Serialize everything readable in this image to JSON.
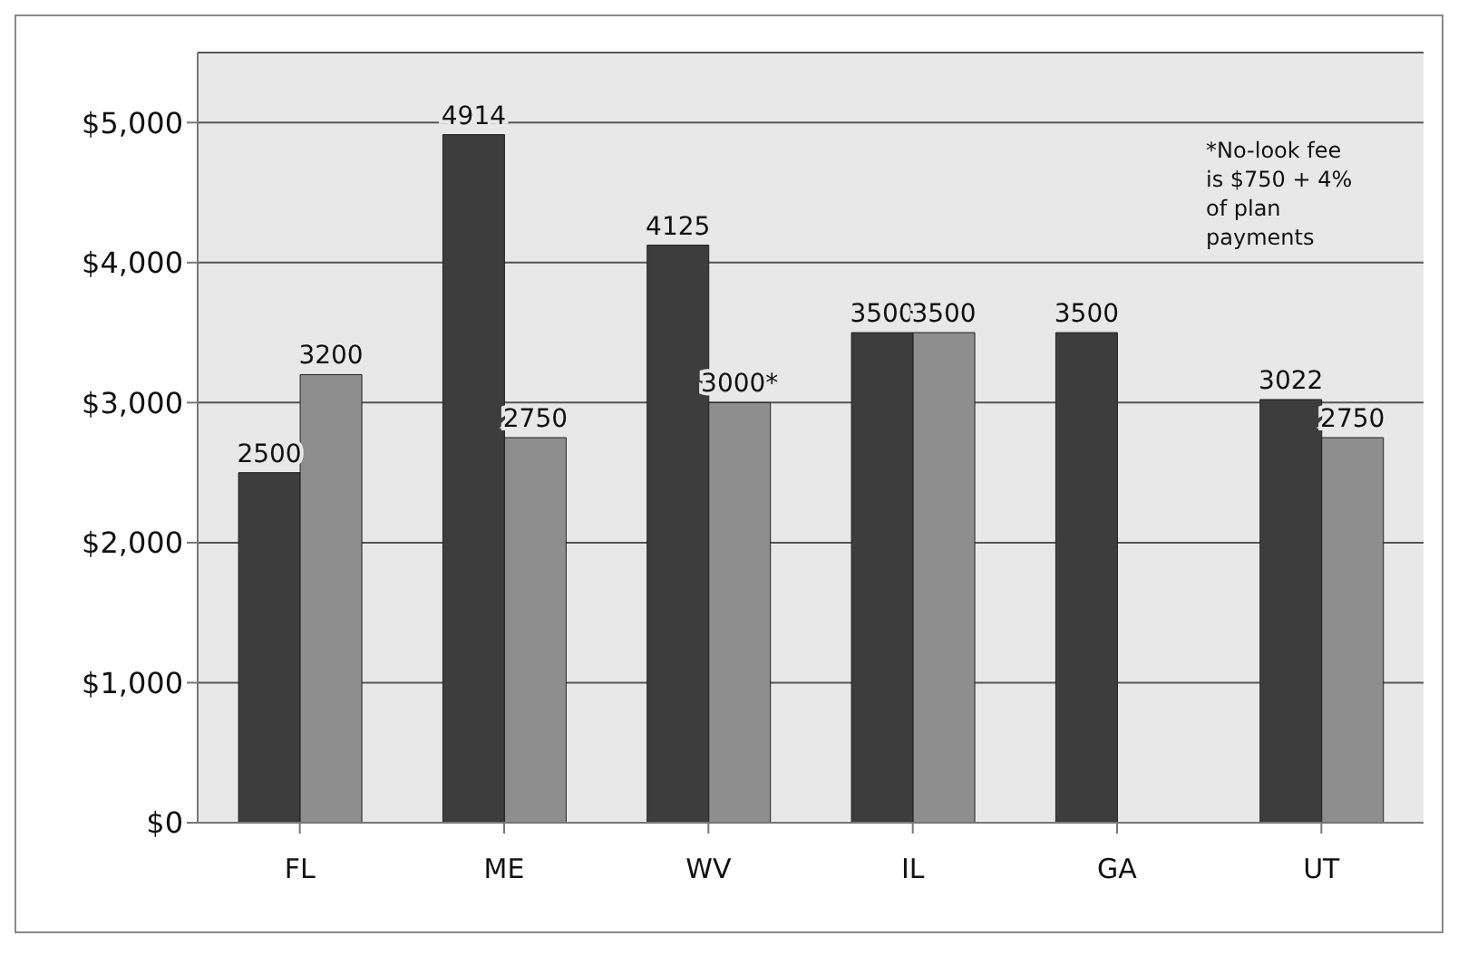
{
  "chart_data": {
    "type": "bar",
    "categories": [
      "FL",
      "ME",
      "WV",
      "IL",
      "GA",
      "UT"
    ],
    "series": [
      {
        "color": "#3d3d3d",
        "values": [
          2500,
          4914,
          4125,
          3500,
          3500,
          3022
        ],
        "value_labels": [
          "2500",
          "4914",
          "4125",
          "3500",
          "3500",
          "3022"
        ]
      },
      {
        "color": "#8e8e8e",
        "values": [
          3200,
          2750,
          3000,
          3500,
          null,
          2750
        ],
        "value_labels": [
          "3200",
          "2750",
          "3000*",
          "3500",
          null,
          "2750"
        ]
      }
    ],
    "ylim": [
      0,
      5500
    ],
    "yticks": [
      {
        "value": 0,
        "label": "$0"
      },
      {
        "value": 1000,
        "label": "$1,000"
      },
      {
        "value": 2000,
        "label": "$2,000"
      },
      {
        "value": 3000,
        "label": "$3,000"
      },
      {
        "value": 4000,
        "label": "$4,000"
      },
      {
        "value": 5000,
        "label": "$5,000"
      }
    ],
    "grid": "y",
    "annotations": [
      "*No-look fee is $750 + 4% of plan payments"
    ]
  }
}
